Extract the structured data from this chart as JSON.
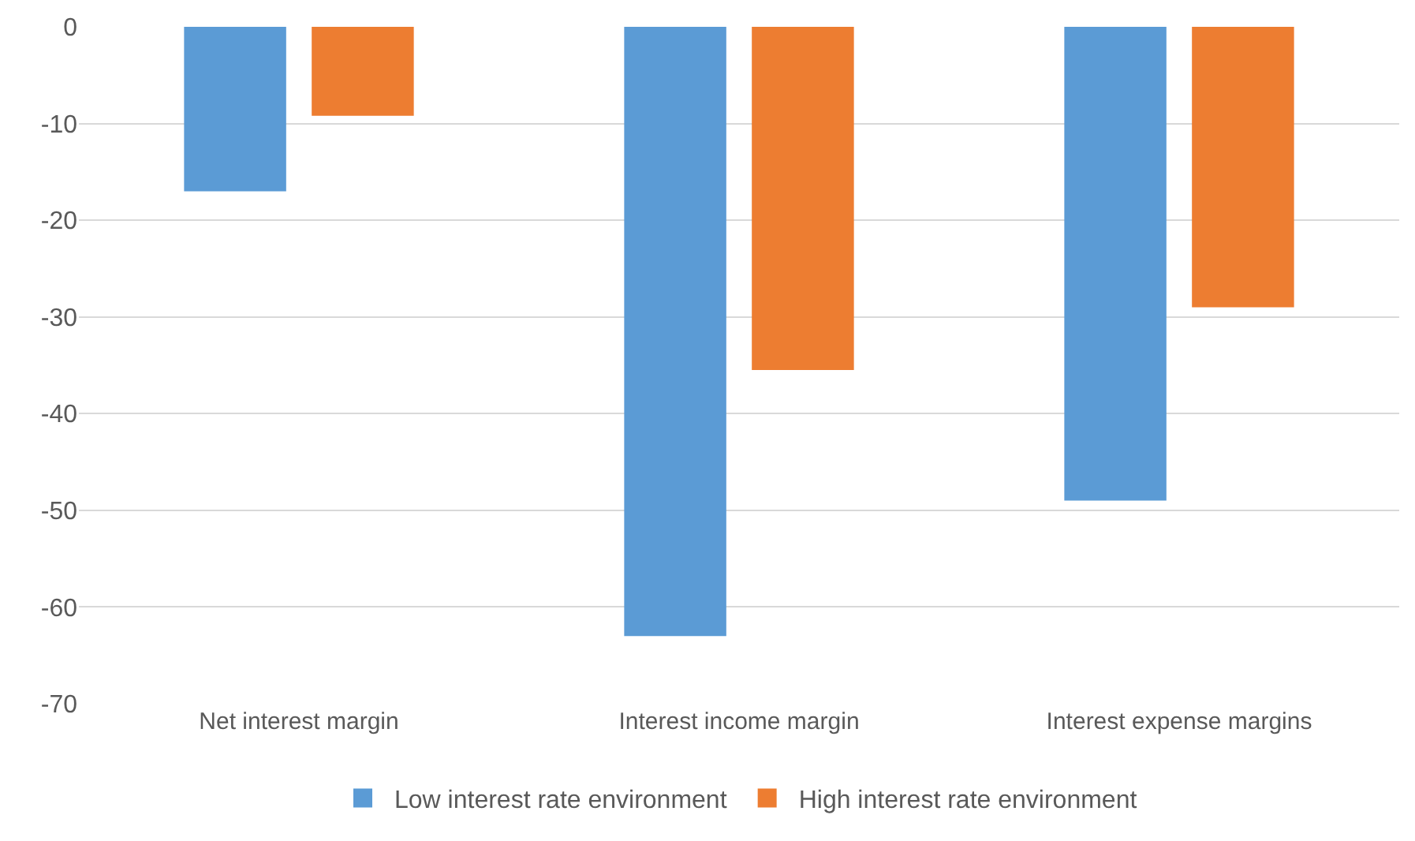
{
  "chart_data": {
    "type": "bar",
    "categories": [
      "Net interest margin",
      "Interest income margin",
      "Interest expense margins"
    ],
    "series": [
      {
        "name": "Low interest rate environment",
        "color": "#5b9bd5",
        "values": [
          -17,
          -63,
          -49
        ]
      },
      {
        "name": "High interest rate environment",
        "color": "#ed7d31",
        "values": [
          -9.2,
          -35.5,
          -29
        ]
      }
    ],
    "ylim": [
      -70,
      0
    ],
    "yticks": [
      -70,
      -60,
      -50,
      -40,
      -30,
      -20,
      -10,
      0
    ],
    "grid": "y",
    "legend": "bottom"
  }
}
